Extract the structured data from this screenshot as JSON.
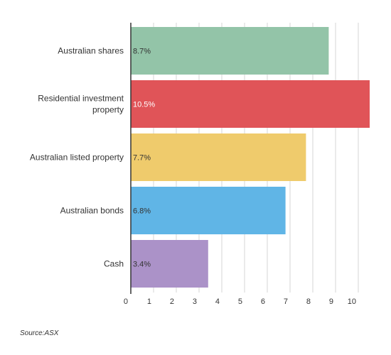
{
  "chart_data": {
    "type": "bar",
    "orientation": "horizontal",
    "categories": [
      [
        "Australian shares"
      ],
      [
        "Residential investment",
        "property"
      ],
      [
        "Australian listed property"
      ],
      [
        "Australian bonds"
      ],
      [
        "Cash"
      ]
    ],
    "values": [
      8.7,
      10.5,
      7.7,
      6.8,
      3.4
    ],
    "data_labels": [
      "8.7%",
      "10.5%",
      "7.7%",
      "6.8%",
      "3.4%"
    ],
    "colors": [
      "#93c4a8",
      "#e05458",
      "#efcb6c",
      "#60b5e6",
      "#ab92c8"
    ],
    "label_colors": [
      "#333333",
      "#ffffff",
      "#333333",
      "#333333",
      "#333333"
    ],
    "x_ticks": [
      "0",
      "1",
      "2",
      "3",
      "4",
      "5",
      "6",
      "7",
      "8",
      "9",
      "10"
    ],
    "xlim": [
      0,
      10.5
    ],
    "grid": true
  },
  "source": "Source:ASX"
}
